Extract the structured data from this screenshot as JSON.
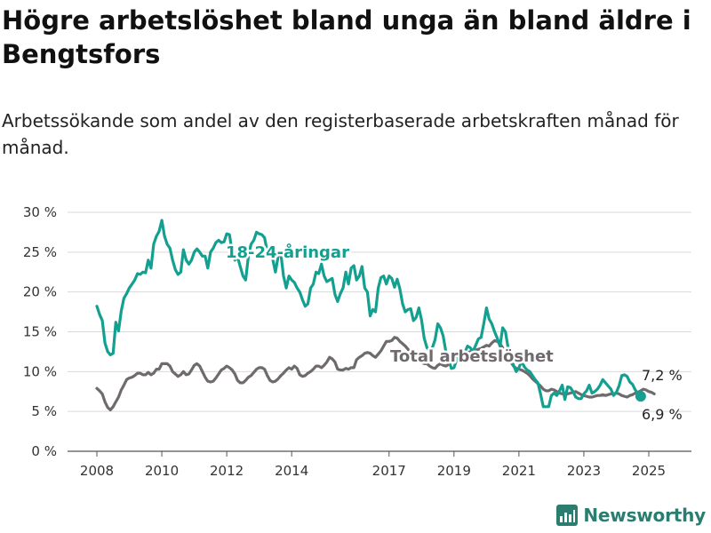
{
  "header": {
    "title": "Högre arbetslöshet bland unga än bland äldre i Bengtsfors",
    "subtitle": "Arbetssökande som andel av den registerbaserade arbetskraften månad för månad."
  },
  "brand": {
    "name": "Newsworthy",
    "color": "#2a7d6f"
  },
  "chart_data": {
    "type": "line",
    "title": "Högre arbetslöshet bland unga än bland äldre i Bengtsfors",
    "subtitle": "Arbetssökande som andel av den registerbaserade arbetskraften månad för månad.",
    "ylim": [
      0,
      30
    ],
    "yticks": [
      0,
      5,
      10,
      15,
      20,
      25,
      30
    ],
    "ytick_labels": [
      "0 %",
      "5 %",
      "10 %",
      "15 %",
      "20 %",
      "25 %",
      "30 %"
    ],
    "xlim": [
      2007.5,
      2026.3
    ],
    "xticks": [
      2008,
      2010,
      2012,
      2014,
      2017,
      2019,
      2021,
      2023,
      2025
    ],
    "xtick_labels": [
      "2008",
      "2010",
      "2012",
      "2014",
      "2017",
      "2019",
      "2021",
      "2023",
      "2025"
    ],
    "grid": true,
    "legend": "none",
    "series": [
      {
        "name": "18-24-åringar",
        "color": "#14a090",
        "x_start": "2008-01",
        "frequency": "monthly",
        "values": [
          18.2,
          17.2,
          16.4,
          13.6,
          12.5,
          12.1,
          12.3,
          16.2,
          15.1,
          17.6,
          19.2,
          19.8,
          20.5,
          21.0,
          21.5,
          22.3,
          22.2,
          22.5,
          22.4,
          24.0,
          23.0,
          26.0,
          27.0,
          27.6,
          29.0,
          27.0,
          26.0,
          25.5,
          24.0,
          22.8,
          22.2,
          22.5,
          25.3,
          24.0,
          23.5,
          24.0,
          25.0,
          25.4,
          25.0,
          24.5,
          24.5,
          23.0,
          25.0,
          25.5,
          26.2,
          26.5,
          26.2,
          26.3,
          27.3,
          27.2,
          25.0,
          24.0,
          24.4,
          23.2,
          22.0,
          21.5,
          24.5,
          26.0,
          26.5,
          27.5,
          27.3,
          27.2,
          26.8,
          25.0,
          24.5,
          24.1,
          22.5,
          24.5,
          24.8,
          22.0,
          20.5,
          22.0,
          21.5,
          21.2,
          20.5,
          20.0,
          19.0,
          18.2,
          18.5,
          20.5,
          21.0,
          22.5,
          22.3,
          23.5,
          22.0,
          21.3,
          21.5,
          21.7,
          19.7,
          18.8,
          19.8,
          20.5,
          22.5,
          21.0,
          23.0,
          23.3,
          21.5,
          22.0,
          23.2,
          20.5,
          20.0,
          17.0,
          17.8,
          17.5,
          20.5,
          21.8,
          22.0,
          21.0,
          22.0,
          21.7,
          20.6,
          21.6,
          20.4,
          18.5,
          17.5,
          17.8,
          17.9,
          16.4,
          16.8,
          18.0,
          16.5,
          14.2,
          13.0,
          12.7,
          13.0,
          14.0,
          16.0,
          15.5,
          14.5,
          12.5,
          11.6,
          10.4,
          10.5,
          11.5,
          12.0,
          12.5,
          12.4,
          13.2,
          13.0,
          12.5,
          13.3,
          14.1,
          14.3,
          16.0,
          18.0,
          16.6,
          16.0,
          15.0,
          14.2,
          13.2,
          15.5,
          15.0,
          13.0,
          12.2,
          10.8,
          10.0,
          10.5,
          11.3,
          10.6,
          10.2,
          10.0,
          9.5,
          9.0,
          8.6,
          7.2,
          5.6,
          5.6,
          5.6,
          7.0,
          7.3,
          7.0,
          7.6,
          8.3,
          6.5,
          8.1,
          8.0,
          7.5,
          6.8,
          6.6,
          6.6,
          7.2,
          7.6,
          8.3,
          7.3,
          7.5,
          7.8,
          8.3,
          9.0,
          8.6,
          8.2,
          7.8,
          7.0,
          7.4,
          8.2,
          9.5,
          9.6,
          9.4,
          8.7,
          8.4,
          7.7,
          7.3,
          6.9
        ]
      },
      {
        "name": "Total arbetslöshet",
        "color": "#6f6a6e",
        "x_start": "2008-01",
        "frequency": "monthly",
        "values": [
          7.9,
          7.6,
          7.2,
          6.2,
          5.5,
          5.2,
          5.6,
          6.2,
          6.8,
          7.7,
          8.3,
          9.0,
          9.2,
          9.3,
          9.5,
          9.8,
          9.8,
          9.6,
          9.6,
          9.9,
          9.6,
          9.8,
          10.3,
          10.3,
          11.0,
          11.0,
          11.0,
          10.7,
          10.0,
          9.7,
          9.4,
          9.6,
          10.0,
          9.6,
          9.7,
          10.2,
          10.8,
          11.0,
          10.7,
          10.0,
          9.3,
          8.8,
          8.7,
          8.8,
          9.2,
          9.7,
          10.2,
          10.4,
          10.7,
          10.5,
          10.2,
          9.7,
          8.9,
          8.6,
          8.6,
          8.9,
          9.3,
          9.5,
          9.9,
          10.3,
          10.5,
          10.5,
          10.3,
          9.5,
          8.9,
          8.7,
          8.8,
          9.1,
          9.5,
          9.8,
          10.2,
          10.5,
          10.3,
          10.7,
          10.4,
          9.6,
          9.4,
          9.5,
          9.8,
          10.0,
          10.3,
          10.7,
          10.7,
          10.5,
          10.8,
          11.2,
          11.8,
          11.6,
          11.2,
          10.3,
          10.2,
          10.2,
          10.4,
          10.3,
          10.5,
          10.5,
          11.5,
          11.8,
          12.0,
          12.3,
          12.4,
          12.3,
          12.0,
          11.8,
          12.2,
          12.6,
          13.2,
          13.8,
          13.8,
          13.9,
          14.3,
          14.2,
          13.8,
          13.5,
          13.2,
          12.8,
          12.4,
          12.2,
          12.0,
          11.6,
          11.2,
          11.0,
          11.0,
          10.7,
          10.5,
          10.4,
          10.8,
          11.0,
          10.8,
          10.7,
          10.9,
          11.2,
          11.5,
          11.8,
          11.9,
          12.0,
          12.2,
          12.4,
          12.5,
          12.6,
          12.7,
          12.8,
          12.9,
          13.1,
          13.3,
          13.2,
          13.6,
          13.9,
          13.8,
          13.5,
          13.0,
          12.4,
          11.8,
          11.2,
          10.7,
          10.4,
          10.3,
          10.2,
          10.0,
          9.8,
          9.5,
          9.1,
          8.8,
          8.5,
          8.2,
          7.8,
          7.6,
          7.6,
          7.8,
          7.7,
          7.5,
          7.3,
          7.2,
          7.1,
          7.2,
          7.3,
          7.4,
          7.5,
          7.3,
          7.1,
          7.0,
          6.9,
          6.8,
          6.8,
          6.9,
          7.0,
          7.0,
          7.1,
          7.0,
          7.1,
          7.2,
          7.2,
          7.3,
          7.2,
          7.0,
          6.9,
          6.8,
          7.0,
          7.1,
          7.3,
          7.4,
          7.6,
          7.8,
          7.7,
          7.5,
          7.4,
          7.2
        ]
      }
    ],
    "annotations": {
      "youth_label": "18-24-åringar",
      "total_label": "Total arbetslöshet",
      "total_last_value": "7,2 %",
      "youth_last_value": "6,9 %"
    }
  }
}
